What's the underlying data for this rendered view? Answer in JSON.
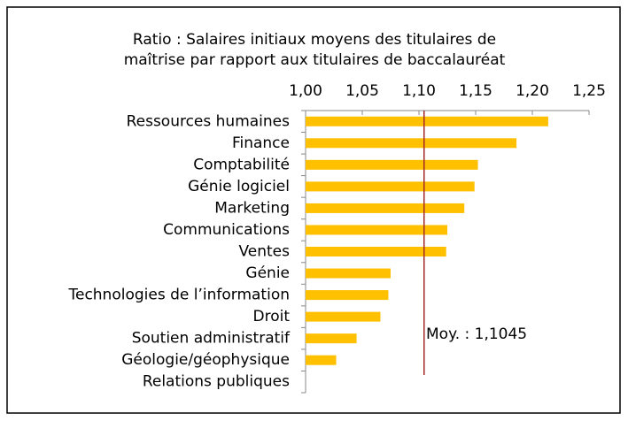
{
  "chart_data": {
    "type": "bar",
    "orientation": "horizontal",
    "title": [
      "Ratio : Salaires initiaux moyens des titulaires de",
      "maîtrise par rapport aux titulaires de baccalauréat"
    ],
    "categories": [
      "Ressources humaines",
      "Finance",
      "Comptabilité",
      "Génie logiciel",
      "Marketing",
      "Communications",
      "Ventes",
      "Génie",
      "Technologies de l’information",
      "Droit",
      "Soutien administratif",
      "Géologie/géophysique",
      "Relations publiques"
    ],
    "values": [
      1.214,
      1.186,
      1.152,
      1.149,
      1.14,
      1.125,
      1.124,
      1.075,
      1.073,
      1.066,
      1.045,
      1.027,
      1.0
    ],
    "color": "#ffc000",
    "xlim": [
      1.0,
      1.25
    ],
    "xticks": [
      {
        "value": 1.0,
        "label": "1,00"
      },
      {
        "value": 1.05,
        "label": "1,05"
      },
      {
        "value": 1.1,
        "label": "1,10"
      },
      {
        "value": 1.15,
        "label": "1,15"
      },
      {
        "value": 1.2,
        "label": "1,20"
      },
      {
        "value": 1.25,
        "label": "1,25"
      }
    ],
    "reference_line": {
      "value": 1.1045,
      "label": "Moy. : 1,1045",
      "color": "#a52a2a"
    }
  }
}
